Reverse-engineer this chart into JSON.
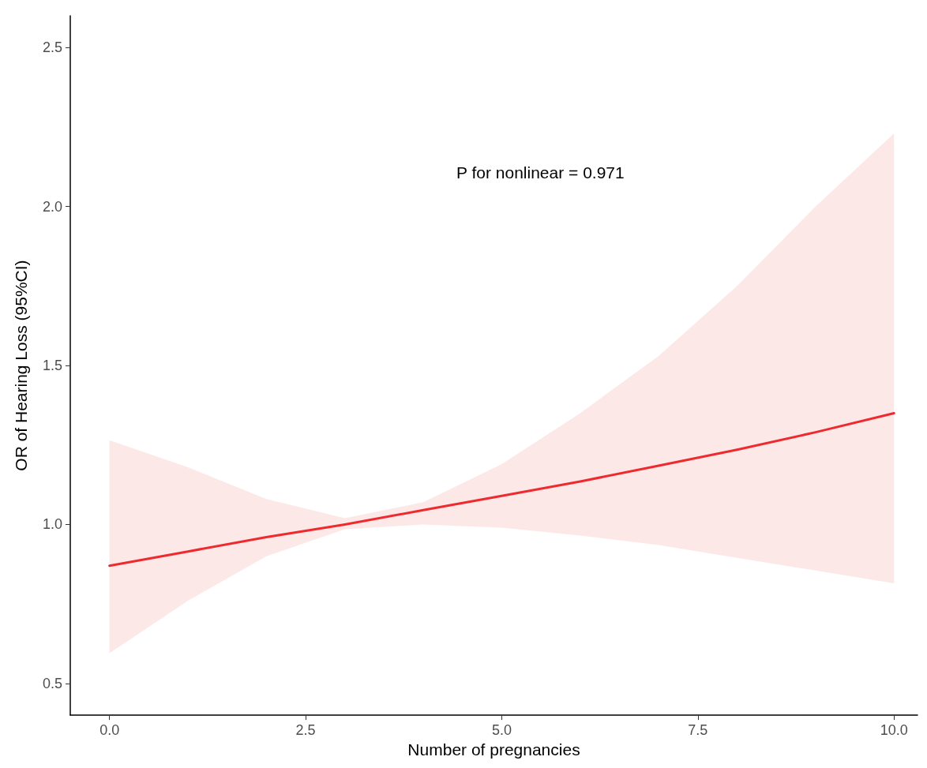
{
  "chart_data": {
    "type": "line",
    "xlabel": "Number of pregnancies",
    "ylabel": "OR of Hearing Loss (95%CI)",
    "annotations": [
      "P for nonlinear = 0.971"
    ],
    "xlim": [
      -0.5,
      10.3
    ],
    "xticks": [
      {
        "value": 0,
        "label": "0.0"
      },
      {
        "value": 2.5,
        "label": "2.5"
      },
      {
        "value": 5,
        "label": "5.0"
      },
      {
        "value": 7.5,
        "label": "7.5"
      },
      {
        "value": 10,
        "label": "10.0"
      }
    ],
    "ylim": [
      0.4,
      2.6
    ],
    "yticks": [
      {
        "value": 0.5,
        "label": "0.5"
      },
      {
        "value": 1,
        "label": "1.0"
      },
      {
        "value": 1.5,
        "label": "1.5"
      },
      {
        "value": 2,
        "label": "2.0"
      },
      {
        "value": 2.5,
        "label": "2.5"
      }
    ],
    "grid": false,
    "marker": "none",
    "line_style": "solid",
    "x": [
      0,
      1,
      2,
      3,
      4,
      5,
      6,
      7,
      8,
      9,
      10
    ],
    "series": [
      {
        "color": "#ee2a2f",
        "values": [
          0.87,
          0.915,
          0.96,
          1.0,
          1.045,
          1.09,
          1.135,
          1.185,
          1.235,
          1.29,
          1.35
        ],
        "lower": [
          0.595,
          0.76,
          0.9,
          0.985,
          1.0,
          0.99,
          0.965,
          0.935,
          0.895,
          0.855,
          0.815
        ],
        "upper": [
          1.265,
          1.18,
          1.08,
          1.02,
          1.07,
          1.19,
          1.35,
          1.53,
          1.75,
          2.0,
          2.23
        ]
      }
    ]
  }
}
